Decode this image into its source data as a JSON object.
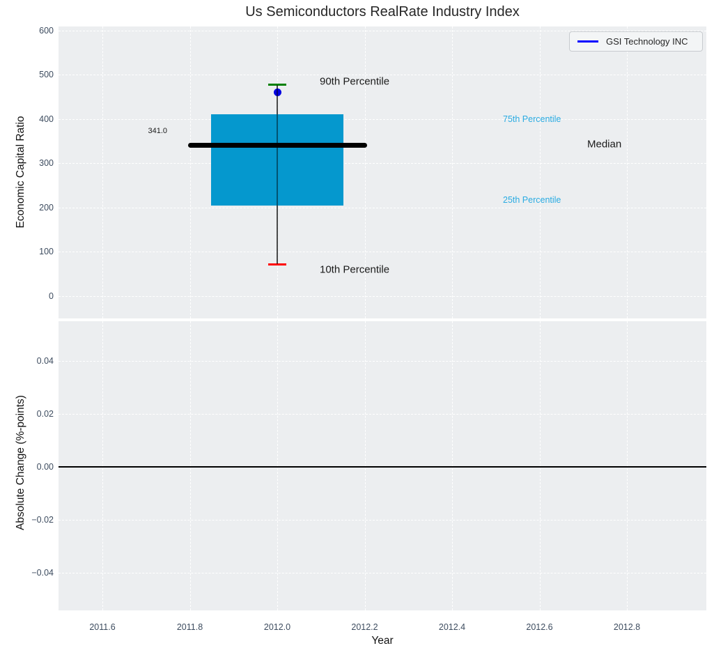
{
  "title": "Us Semiconductors RealRate Industry Index",
  "legend": {
    "label": "GSI Technology INC"
  },
  "axes": {
    "top": {
      "ylabel": "Economic Capital Ratio",
      "ytick_labels": [
        "0",
        "100",
        "200",
        "300",
        "400",
        "500",
        "600"
      ]
    },
    "bottom": {
      "ylabel": "Absolute Change (%-points)",
      "xlabel": "Year",
      "ytick_labels": [
        "−0.04",
        "−0.02",
        "0.00",
        "0.02",
        "0.04"
      ],
      "xtick_labels": [
        "2011.6",
        "2011.8",
        "2012.0",
        "2012.2",
        "2012.4",
        "2012.6",
        "2012.8"
      ]
    }
  },
  "annotations": {
    "p90": "90th Percentile",
    "p10": "10th Percentile",
    "p75": "75th Percentile",
    "p25": "25th Percentile",
    "median": "Median",
    "median_value": "341.0"
  },
  "colors": {
    "box_fill": "#0598ce",
    "median_line": "#000000",
    "p90_cap": "#008000",
    "p10_cap": "#ff0000",
    "company_dot": "#0000e0",
    "legend_line": "#0000ff",
    "percentile_label": "#29abe2",
    "plot_background": "#eceef0",
    "gridline": "#ffffff",
    "tick_label": "#3d4c5f"
  },
  "chart_data": [
    {
      "type": "boxplot",
      "title": "Us Semiconductors RealRate Industry Index",
      "xlabel": "Year",
      "ylabel": "Economic Capital Ratio",
      "x": 2012.0,
      "percentile_10": 72,
      "percentile_25": 205,
      "median": 341,
      "median_label": "341.0",
      "percentile_75": 410,
      "percentile_90": 477,
      "company_point": {
        "name": "GSI Technology INC",
        "x": 2012.0,
        "value": 461
      },
      "xticks": [
        2011.6,
        2011.8,
        2012.0,
        2012.2,
        2012.4,
        2012.6,
        2012.8
      ],
      "yticks": [
        0,
        100,
        200,
        300,
        400,
        500,
        600
      ],
      "xlim": [
        2011.5,
        2013.0
      ],
      "ylim": [
        -50,
        609
      ],
      "grid": true,
      "legend_position": "upper right"
    },
    {
      "type": "line",
      "xlabel": "Year",
      "ylabel": "Absolute Change (%-points)",
      "series": [],
      "zero_line_y": 0.0,
      "xticks": [
        2011.6,
        2011.8,
        2012.0,
        2012.2,
        2012.4,
        2012.6,
        2012.8
      ],
      "yticks": [
        -0.04,
        -0.02,
        0.0,
        0.02,
        0.04
      ],
      "ylim": [
        -0.055,
        0.055
      ],
      "grid": true
    }
  ]
}
